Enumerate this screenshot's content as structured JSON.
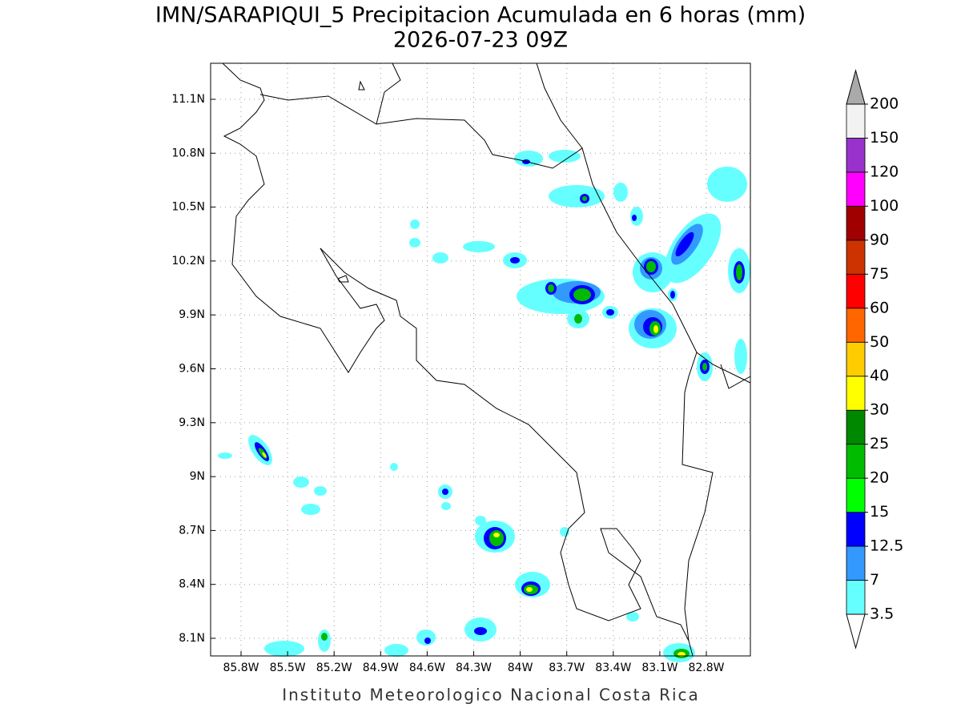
{
  "title": "IMN/SARAPIQUI_5 Precipitacion Acumulada en 6 horas (mm)",
  "subtitle": "2026-07-23 09Z",
  "map": {
    "x_ticks": [
      "85.8W",
      "85.5W",
      "85.2W",
      "84.9W",
      "84.6W",
      "84.3W",
      "84W",
      "83.7W",
      "83.4W",
      "83.1W",
      "82.8W"
    ],
    "y_ticks": [
      "11.1N",
      "10.8N",
      "10.5N",
      "10.2N",
      "9.9N",
      "9.6N",
      "9.3N",
      "9N",
      "8.7N",
      "8.4N",
      "8.1N"
    ]
  },
  "colorbar": {
    "levels": [
      3.5,
      7,
      12.5,
      15,
      20,
      25,
      30,
      40,
      50,
      60,
      75,
      90,
      100,
      120,
      150,
      200
    ],
    "colors": [
      "#66ffff",
      "#3399ff",
      "#0000ff",
      "#00ff00",
      "#00bb00",
      "#008800",
      "#ffff00",
      "#ffcc00",
      "#ff6600",
      "#ff0000",
      "#cc3300",
      "#a00000",
      "#ff00ff",
      "#9932cc",
      "#f2f2f2"
    ],
    "over_color": "#aaaaaa",
    "under_color": "#ffffff"
  },
  "footer": "Instituto Meteorologico Nacional Costa Rica"
}
